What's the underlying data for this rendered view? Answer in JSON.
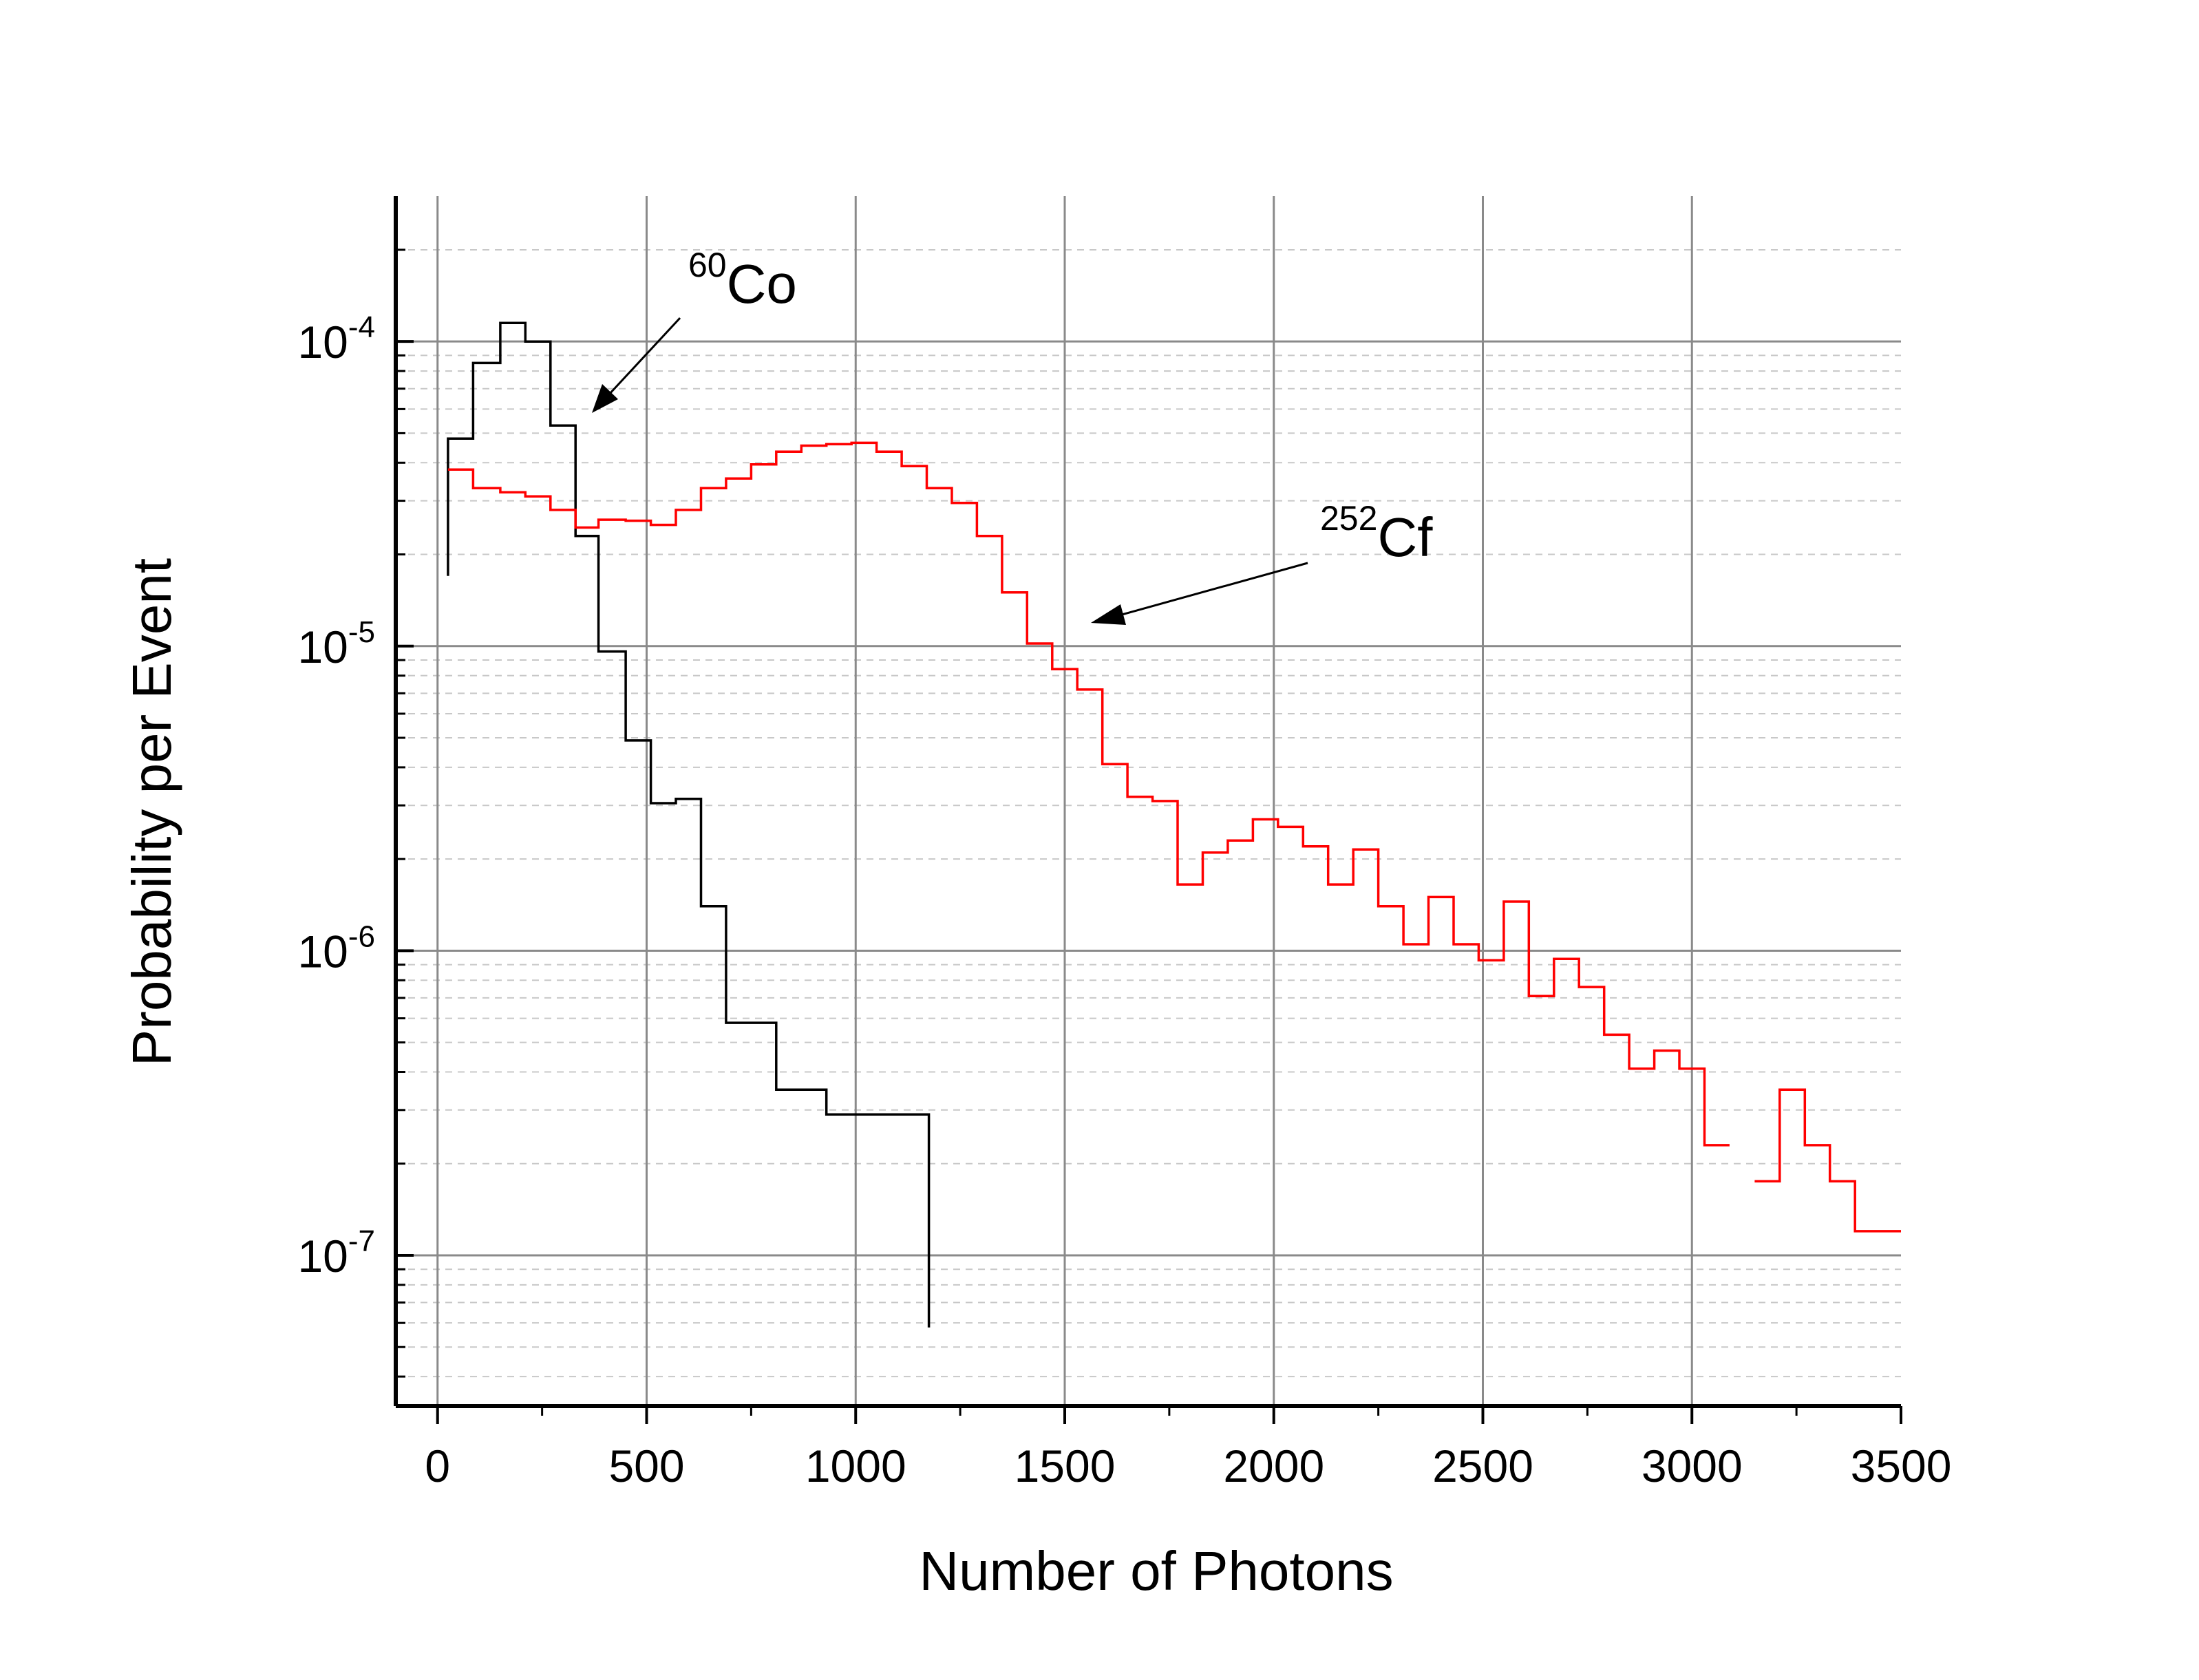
{
  "chart_data": {
    "type": "line",
    "step": true,
    "xlabel": "Number of Photons",
    "ylabel": "Probability per Event",
    "xlim": [
      -100,
      3500
    ],
    "ylim": [
      3.2e-08,
      0.0003
    ],
    "yscale": "log",
    "grid": true,
    "x_ticks": [
      {
        "value": 0,
        "label": "0"
      },
      {
        "value": 500,
        "label": "500"
      },
      {
        "value": 1000,
        "label": "1000"
      },
      {
        "value": 1500,
        "label": "1500"
      },
      {
        "value": 2000,
        "label": "2000"
      },
      {
        "value": 2500,
        "label": "2500"
      },
      {
        "value": 3000,
        "label": "3000"
      },
      {
        "value": 3500,
        "label": "3500"
      }
    ],
    "y_ticks": [
      {
        "value": 1e-07,
        "base": "10",
        "exp": "-7"
      },
      {
        "value": 1e-06,
        "base": "10",
        "exp": "-6"
      },
      {
        "value": 1e-05,
        "base": "10",
        "exp": "-5"
      },
      {
        "value": 0.0001,
        "base": "10",
        "exp": "-4"
      }
    ],
    "series": [
      {
        "label_base": "Co",
        "label_sup": "60",
        "color": "#000000",
        "edges": [
          25,
          85,
          150,
          210,
          270,
          330,
          385,
          450,
          510,
          570,
          630,
          690,
          810,
          930,
          1175
        ],
        "values": [
          4.8e-05,
          8.5e-05,
          0.000115,
          0.0001,
          5.3e-05,
          2.3e-05,
          9.6e-06,
          4.9e-06,
          3.05e-06,
          3.15e-06,
          1.4e-06,
          5.8e-07,
          3.5e-07,
          2.9e-07,
          5.8e-08
        ],
        "start_value": 1.7e-05
      },
      {
        "label_base": "Cf",
        "label_sup": "252",
        "color": "#ff0000",
        "edges": [
          25,
          85,
          150,
          210,
          270,
          330,
          385,
          450,
          510,
          570,
          630,
          690,
          750,
          810,
          870,
          930,
          990,
          1050,
          1110,
          1170,
          1230,
          1290,
          1350,
          1410,
          1470,
          1530,
          1590,
          1650,
          1710,
          1770,
          1830,
          1890,
          1950,
          2010,
          2070,
          2130,
          2190,
          2250,
          2310,
          2370,
          2430,
          2490,
          2550,
          2610,
          2670,
          2730,
          2790,
          2850,
          2910,
          2970,
          3030,
          3090,
          3150,
          3210,
          3270,
          3330,
          3390,
          3450,
          3500
        ],
        "values": [
          3.8e-05,
          3.3e-05,
          3.2e-05,
          3.1e-05,
          2.8e-05,
          2.45e-05,
          2.6e-05,
          2.58e-05,
          2.5e-05,
          2.8e-05,
          3.3e-05,
          3.55e-05,
          3.95e-05,
          4.35e-05,
          4.55e-05,
          4.6e-05,
          4.65e-05,
          4.35e-05,
          3.9e-05,
          3.3e-05,
          2.95e-05,
          2.3e-05,
          1.5e-05,
          1.02e-05,
          8.4e-06,
          7.2e-06,
          4.1e-06,
          3.2e-06,
          3.1e-06,
          1.65e-06,
          2.1e-06,
          2.3e-06,
          2.7e-06,
          2.55e-06,
          2.2e-06,
          1.65e-06,
          2.15e-06,
          1.4e-06,
          1.05e-06,
          1.5e-06,
          1.05e-06,
          9.3e-07,
          1.45e-06,
          7.1e-07,
          9.4e-07,
          7.6e-07,
          5.3e-07,
          4.1e-07,
          4.7e-07,
          4.1e-07,
          2.3e-07,
          null,
          1.75e-07,
          3.5e-07,
          2.3e-07,
          1.75e-07,
          1.2e-07,
          1.2e-07
        ],
        "start_value": null
      }
    ]
  }
}
